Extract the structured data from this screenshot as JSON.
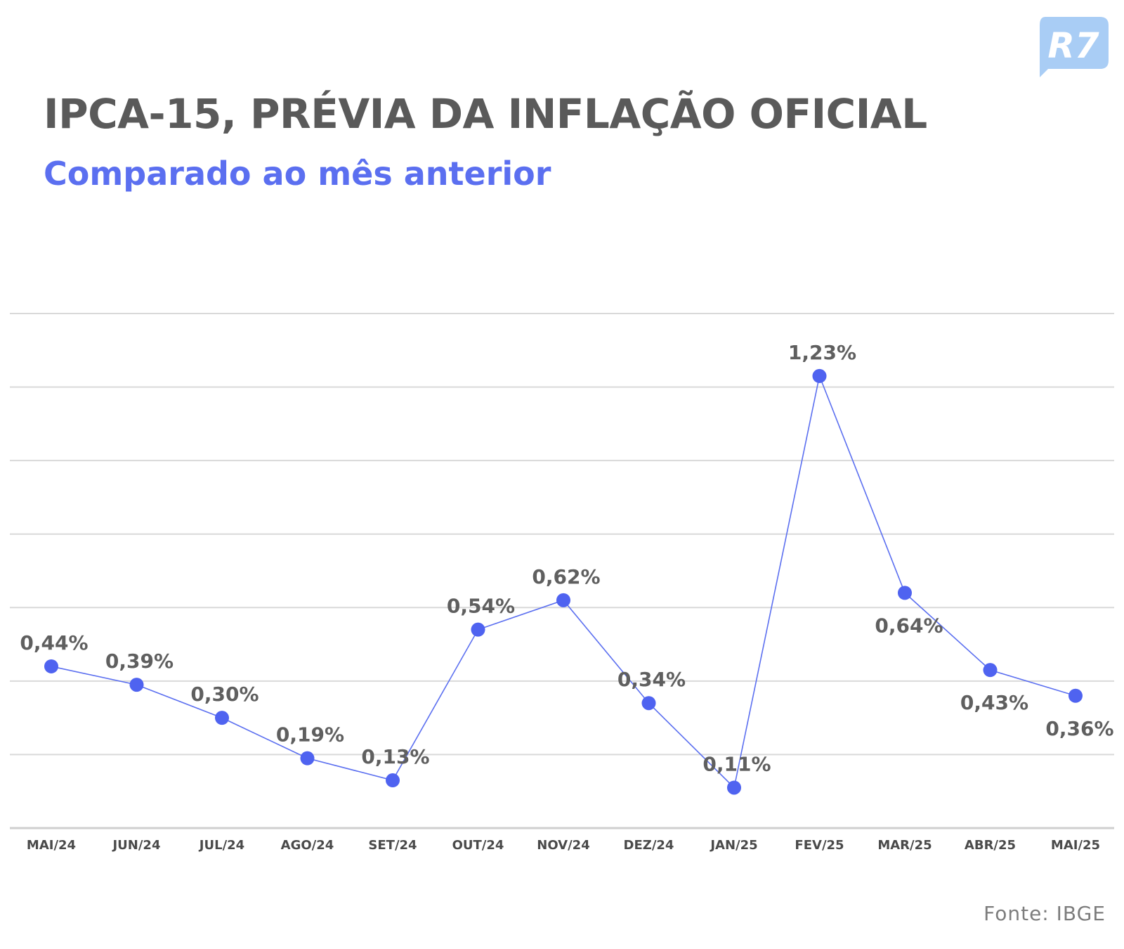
{
  "logo": {
    "text": "R7",
    "color": "#7ab3f0"
  },
  "header": {
    "title": "IPCA-15, PRÉVIA DA INFLAÇÃO OFICIAL",
    "subtitle": "Comparado ao mês anterior"
  },
  "footer": {
    "source": "Fonte: IBGE"
  },
  "colors": {
    "line": "#5b6ff0",
    "point": "#4f63f0",
    "grid": "#d9d9d9",
    "axis": "#cfcfcf",
    "title": "#5a5a5a",
    "subtitle": "#5b6ff0"
  },
  "chart_data": {
    "type": "line",
    "categories": [
      "MAI/24",
      "JUN/24",
      "JUL/24",
      "AGO/24",
      "SET/24",
      "OUT/24",
      "NOV/24",
      "DEZ/24",
      "JAN/25",
      "FEV/25",
      "MAR/25",
      "ABR/25",
      "MAI/25"
    ],
    "values": [
      0.44,
      0.39,
      0.3,
      0.19,
      0.13,
      0.54,
      0.62,
      0.34,
      0.11,
      1.23,
      0.64,
      0.43,
      0.36
    ],
    "labels": [
      "0,44%",
      "0,39%",
      "0,30%",
      "0,19%",
      "0,13%",
      "0,54%",
      "0,62%",
      "0,34%",
      "0,11%",
      "1,23%",
      "0,64%",
      "0,43%",
      "0,36%"
    ],
    "label_side": [
      "above",
      "above",
      "above",
      "above",
      "above",
      "above",
      "above",
      "above",
      "above",
      "above",
      "below",
      "below",
      "below"
    ],
    "ylim": [
      0,
      1.4
    ],
    "grid": true,
    "y_tick_labels_shown": false
  }
}
